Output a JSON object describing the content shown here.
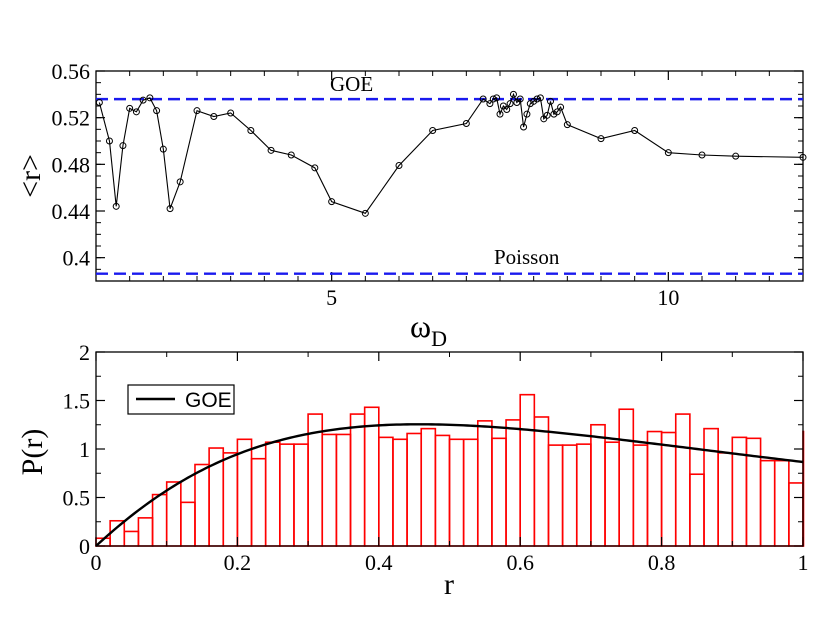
{
  "colors": {
    "reference": "#1a1aee",
    "series": "#000000",
    "histogram": "#ff0000",
    "axes": "#000000"
  },
  "chart_data": [
    {
      "type": "line",
      "xlabel_main": "ω",
      "xlabel_sub": "D",
      "ylabel": "<r>",
      "xlim": [
        1.5,
        12.0
      ],
      "ylim": [
        0.38,
        0.56
      ],
      "xticks": [
        5,
        10
      ],
      "yticks": [
        0.4,
        0.44,
        0.48,
        0.52,
        0.56
      ],
      "ytick_labels": [
        "0.4",
        "0.44",
        "0.48",
        "0.52",
        "0.56"
      ],
      "reference_lines": [
        {
          "label": "GOE",
          "value": 0.5359
        },
        {
          "label": "Poisson",
          "value": 0.3863
        }
      ],
      "series": [
        {
          "name": "<r>",
          "x": [
            1.55,
            1.7,
            1.8,
            1.9,
            2.0,
            2.1,
            2.2,
            2.3,
            2.4,
            2.5,
            2.6,
            2.75,
            3.0,
            3.25,
            3.5,
            3.8,
            4.1,
            4.4,
            4.75,
            5.0,
            5.5,
            6.0,
            6.5,
            7.0,
            7.25,
            7.35,
            7.4,
            7.45,
            7.5,
            7.55,
            7.6,
            7.65,
            7.7,
            7.75,
            7.8,
            7.85,
            7.9,
            7.95,
            8.0,
            8.05,
            8.1,
            8.15,
            8.2,
            8.25,
            8.3,
            8.35,
            8.4,
            8.5,
            9.0,
            9.5,
            10.0,
            10.5,
            11.0,
            12.0
          ],
          "y": [
            0.533,
            0.5,
            0.444,
            0.496,
            0.528,
            0.525,
            0.535,
            0.537,
            0.526,
            0.493,
            0.442,
            0.465,
            0.526,
            0.521,
            0.524,
            0.509,
            0.492,
            0.488,
            0.477,
            0.448,
            0.438,
            0.479,
            0.509,
            0.515,
            0.536,
            0.532,
            0.536,
            0.537,
            0.523,
            0.53,
            0.527,
            0.532,
            0.54,
            0.533,
            0.536,
            0.512,
            0.523,
            0.532,
            0.534,
            0.536,
            0.537,
            0.519,
            0.522,
            0.534,
            0.523,
            0.525,
            0.529,
            0.514,
            0.502,
            0.509,
            0.49,
            0.488,
            0.487,
            0.486
          ]
        }
      ]
    },
    {
      "type": "bar",
      "xlabel": "r",
      "ylabel": "P(r)",
      "xlim": [
        0,
        1
      ],
      "ylim": [
        0,
        2
      ],
      "xticks": [
        0,
        0.2,
        0.4,
        0.6,
        0.8,
        1
      ],
      "xtick_labels": [
        "0",
        "0.2",
        "0.4",
        "0.6",
        "0.8",
        "1"
      ],
      "yticks": [
        0,
        0.5,
        1,
        1.5,
        2
      ],
      "ytick_labels": [
        "0",
        "0.5",
        "1",
        "1.5",
        "2"
      ],
      "legend": {
        "position": "top-left",
        "entries": [
          "GOE"
        ]
      },
      "bin_width": 0.02,
      "histogram_values": [
        0.08,
        0.26,
        0.15,
        0.29,
        0.53,
        0.66,
        0.45,
        0.84,
        1.01,
        0.96,
        1.1,
        0.9,
        1.07,
        1.05,
        1.05,
        1.36,
        1.15,
        1.15,
        1.36,
        1.43,
        1.12,
        1.1,
        1.16,
        1.21,
        1.14,
        1.1,
        1.1,
        1.29,
        1.11,
        1.3,
        1.56,
        1.33,
        1.04,
        1.04,
        1.05,
        1.25,
        1.07,
        1.41,
        1.04,
        1.18,
        1.17,
        1.36,
        0.74,
        1.21,
        0.96,
        1.12,
        1.11,
        0.88,
        0.88,
        0.65,
        1.18
      ],
      "goe_curve": {
        "name": "GOE",
        "formula": "P(r) = (27/4) (r + r^2) / (1 + r + r^2)^(5/2)"
      }
    }
  ]
}
